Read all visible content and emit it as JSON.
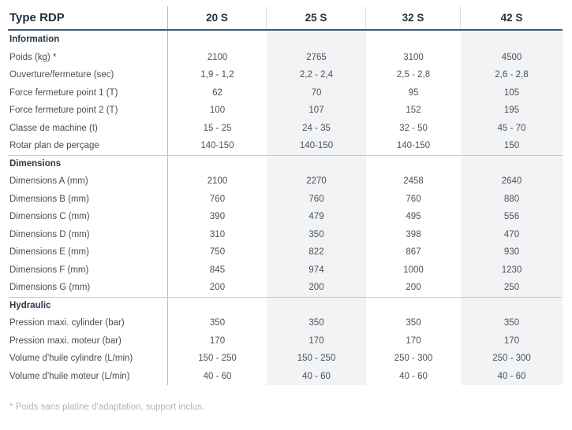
{
  "table": {
    "title": "Type RDP",
    "columns": [
      "20 S",
      "25 S",
      "32 S",
      "42 S"
    ],
    "sections": [
      {
        "label": "Information",
        "rows": [
          {
            "label": "Poids (kg) *",
            "values": [
              "2100",
              "2765",
              "3100",
              "4500"
            ]
          },
          {
            "label": "Ouverture/fermeture (sec)",
            "values": [
              "1,9 - 1,2",
              "2,2 - 2,4",
              "2,5 - 2,8",
              "2,6 - 2,8"
            ]
          },
          {
            "label": "Force fermeture point 1 (T)",
            "values": [
              "62",
              "70",
              "95",
              "105"
            ]
          },
          {
            "label": "Force fermeture point 2 (T)",
            "values": [
              "100",
              "107",
              "152",
              "195"
            ]
          },
          {
            "label": "Classe de machine (t)",
            "values": [
              "15 - 25",
              "24 - 35",
              "32 - 50",
              "45 - 70"
            ]
          },
          {
            "label": "Rotar plan de perçage",
            "values": [
              "140-150",
              "140-150",
              "140-150",
              "150"
            ]
          }
        ]
      },
      {
        "label": "Dimensions",
        "rows": [
          {
            "label": "Dimensions A (mm)",
            "values": [
              "2100",
              "2270",
              "2458",
              "2640"
            ]
          },
          {
            "label": "Dimensions B (mm)",
            "values": [
              "760",
              "760",
              "760",
              "880"
            ]
          },
          {
            "label": "Dimensions C (mm)",
            "values": [
              "390",
              "479",
              "495",
              "556"
            ]
          },
          {
            "label": "Dimensions D (mm)",
            "values": [
              "310",
              "350",
              "398",
              "470"
            ]
          },
          {
            "label": "Dimensions E (mm)",
            "values": [
              "750",
              "822",
              "867",
              "930"
            ]
          },
          {
            "label": "Dimensions F (mm)",
            "values": [
              "845",
              "974",
              "1000",
              "1230"
            ]
          },
          {
            "label": "Dimensions G (mm)",
            "values": [
              "200",
              "200",
              "200",
              "250"
            ]
          }
        ]
      },
      {
        "label": "Hydraulic",
        "rows": [
          {
            "label": "Pression maxi. cylinder (bar)",
            "values": [
              "350",
              "350",
              "350",
              "350"
            ]
          },
          {
            "label": "Pression maxi. moteur (bar)",
            "values": [
              "170",
              "170",
              "170",
              "170"
            ]
          },
          {
            "label": "Volume d'huile cylindre (L/min)",
            "values": [
              "150 - 250",
              "150 - 250",
              "250 - 300",
              "250 - 300"
            ]
          },
          {
            "label": "Volume d'huile moteur (L/min)",
            "values": [
              "40 - 60",
              "40 - 60",
              "40 - 60",
              "40 - 60"
            ]
          }
        ]
      }
    ],
    "footnote": "* Poids sans platine d'adaptation, support inclus."
  },
  "colors": {
    "navy": "#243140",
    "hdr_border": "#3e5c7e",
    "divider": "#b6bfc9",
    "shade": "#f2f3f4",
    "section_line": "#cbcbcb",
    "footnote": "#b4b4b4"
  }
}
